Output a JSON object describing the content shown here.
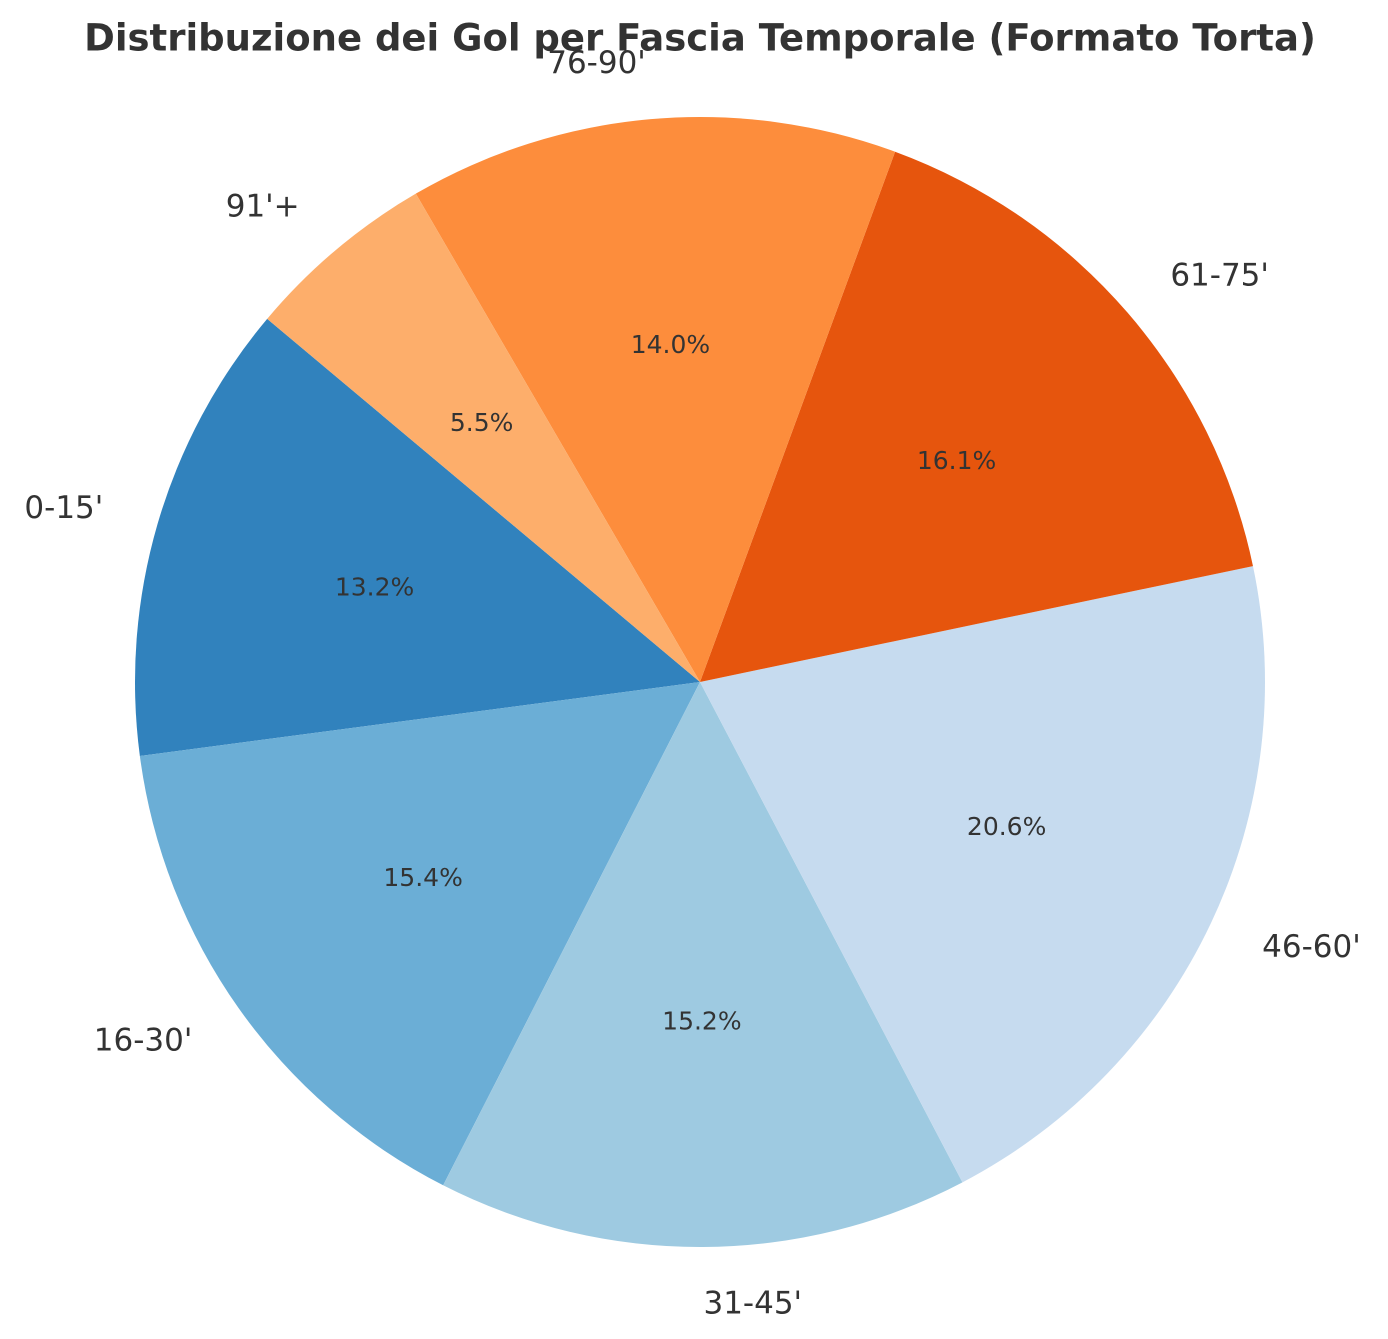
{
  "chart_data": {
    "type": "pie",
    "title": "Distribuzione dei Gol per Fascia Temporale (Formato Torta)",
    "categories": [
      "0-15'",
      "16-30'",
      "31-45'",
      "46-60'",
      "61-75'",
      "76-90'",
      "91'+"
    ],
    "values": [
      13.2,
      15.4,
      15.2,
      20.6,
      16.1,
      14.0,
      5.5
    ],
    "value_labels": [
      "13.2%",
      "15.4%",
      "15.2%",
      "20.6%",
      "16.1%",
      "14.0%",
      "5.5%"
    ],
    "colors": [
      "#3182bd",
      "#6baed6",
      "#9ecae1",
      "#c6dbef",
      "#e6550d",
      "#fd8d3c",
      "#fdae6b"
    ]
  }
}
